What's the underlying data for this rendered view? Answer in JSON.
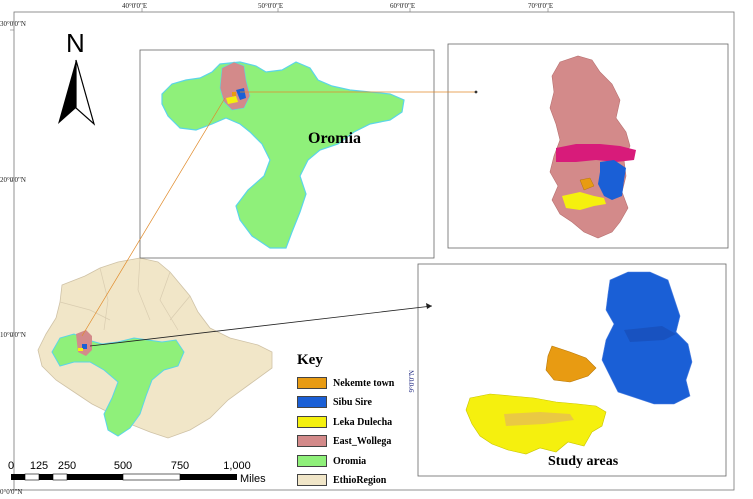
{
  "coordinates": {
    "top_longitudes": [
      "40°0'0\"E",
      "50°0'0\"E",
      "60°0'0\"E",
      "70°0'0\"E"
    ],
    "left_latitudes": [
      "30°0'0\"N",
      "20°0'0\"N",
      "10°0'0\"N",
      "0°0'0\"N"
    ],
    "inset_latitude": "9°0'0\"N"
  },
  "north_arrow": {
    "label": "N",
    "icon": "north-arrow-icon"
  },
  "panels": {
    "region_label": "Oromia",
    "study_label": "Study areas"
  },
  "legend": {
    "title": "Key",
    "items": [
      {
        "label": "Nekemte town",
        "color": "#e89b12"
      },
      {
        "label": "Sibu Sire",
        "color": "#1a5fd6"
      },
      {
        "label": "Leka Dulecha",
        "color": "#f5f00e"
      },
      {
        "label": "East_Wollega",
        "color": "#d38a8a"
      },
      {
        "label": "Oromia",
        "color": "#8ff07a"
      },
      {
        "label": "EthioRegion",
        "color": "#f1e6c8"
      }
    ]
  },
  "scale_bar": {
    "ticks": [
      "0",
      "125",
      "250",
      "500",
      "750",
      "1,000"
    ],
    "unit": "Miles"
  },
  "colors": {
    "oromia_fill": "#8ff07a",
    "oromia_border": "#5bd5e8",
    "ethiopia_fill": "#f1e6c8",
    "east_wollega": "#d38a8a",
    "sibu_sire": "#1a5fd6",
    "leka_dulecha": "#f5f00e",
    "nekemte": "#e89b12",
    "magenta_band": "#d81b7a"
  }
}
